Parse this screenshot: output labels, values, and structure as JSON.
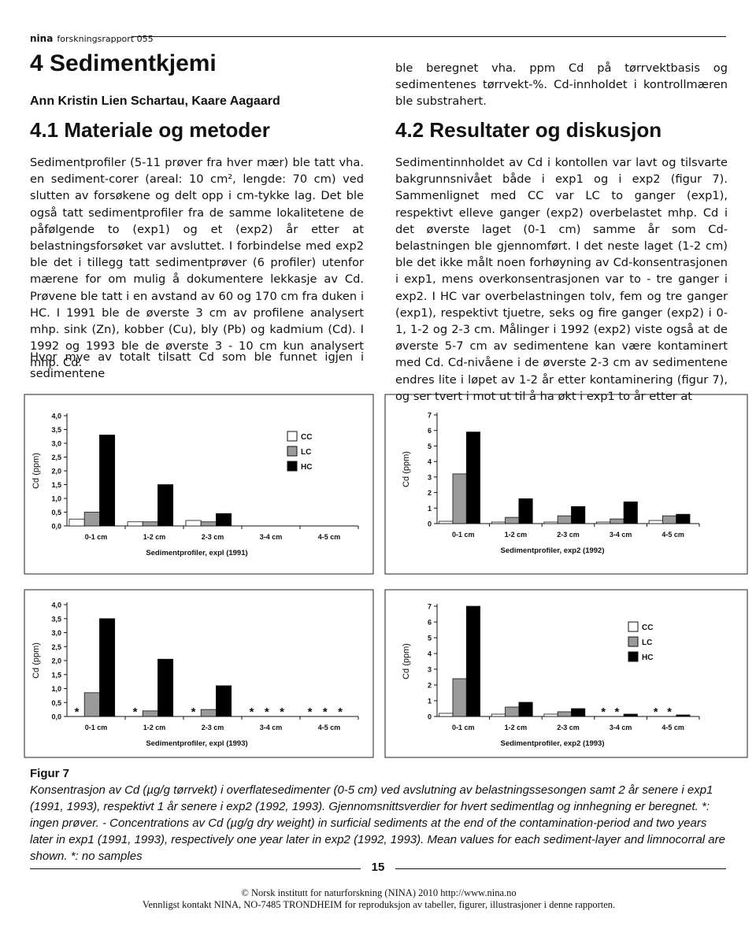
{
  "header": {
    "brand": "nina",
    "series": "forskningsrapport 055"
  },
  "left": {
    "title": "4 Sedimentkjemi",
    "authors": "Ann Kristin Lien Schartau, Kaare Aagaard",
    "heading": "4.1 Materiale og metoder",
    "paragraphs": [
      "Sedimentprofiler (5-11 prøver fra hver mær) ble tatt vha. en sediment-corer (areal: 10 cm², lengde: 70 cm) ved slutten av forsøkene og delt opp i cm-tykke lag. Det ble også tatt sedimentprofiler fra de samme lokalitetene de påfølgende to (exp1) og et (exp2) år etter at belastningsforsøket var avsluttet. I forbindelse med exp2 ble det i tillegg tatt sedimentprøver (6 profiler) utenfor mærene for om mulig å dokumentere lekkasje av Cd. Prøvene ble tatt i en avstand av 60 og 170 cm fra duken i HC. I 1991 ble de øverste 3 cm av profilene analysert mhp. sink (Zn), kobber (Cu), bly (Pb) og kadmium (Cd). I 1992 og 1993 ble de øverste 3 - 10 cm kun analysert mhp. Cd.",
      "Hvor mye av totalt tilsatt Cd som ble funnet igjen i sedimentene"
    ]
  },
  "right": {
    "continuation": "ble beregnet vha. ppm Cd på tørrvektbasis og sedimentenes tørrvekt-%. Cd-innholdet i kontrollmæren ble substrahert.",
    "heading": "4.2 Resultater og diskusjon",
    "paragraph": "Sedimentinnholdet av Cd i kontollen var lavt og tilsvarte bakgrunnsnivået både i exp1 og i exp2 (figur 7). Sammenlignet med CC var LC to ganger (exp1), respektivt elleve ganger (exp2) overbelastet mhp. Cd i det øverste laget (0-1 cm) samme år som Cd-belastningen ble gjennomført. I det neste laget (1-2 cm) ble det ikke målt noen forhøyning av Cd-konsentrasjonen i exp1, mens overkonsentrasjonen var to - tre ganger i exp2. I HC var overbelastningen tolv, fem og tre ganger (exp1), respektivt tjuetre, seks og fire ganger (exp2) i 0-1, 1-2 og 2-3 cm. Målinger i 1992 (exp2) viste også at de øverste 5-7 cm av sedimentene kan være kontaminert med Cd. Cd-nivåene i de øverste 2-3 cm av sedimentene endres lite i løpet av 1-2 år etter kontaminering (figur 7), og ser tvert i mot ut til å ha økt i exp1 to år etter at"
  },
  "chart_data": [
    {
      "type": "bar",
      "x_label": "Sedimentprofiler, expl (1991)",
      "y_label": "Cd (ppm)",
      "categories": [
        "0-1 cm",
        "1-2 cm",
        "2-3 cm",
        "3-4 cm",
        "4-5 cm"
      ],
      "series": [
        {
          "name": "CC",
          "color": "#ffffff",
          "values": [
            0.25,
            0.15,
            0.2,
            null,
            null
          ]
        },
        {
          "name": "LC",
          "color": "#9a9a9a",
          "values": [
            0.5,
            0.15,
            0.15,
            null,
            null
          ]
        },
        {
          "name": "HC",
          "color": "#000000",
          "values": [
            3.3,
            1.5,
            0.45,
            null,
            null
          ]
        }
      ],
      "ylim": [
        0,
        4
      ],
      "yticks": [
        {
          "value": 0,
          "label": "0,0"
        },
        {
          "value": 0.5,
          "label": "0,5"
        },
        {
          "value": 1,
          "label": "1,0"
        },
        {
          "value": 1.5,
          "label": "1,5"
        },
        {
          "value": 2,
          "label": "2,0"
        },
        {
          "value": 2.5,
          "label": "2,5"
        },
        {
          "value": 3,
          "label": "3,0"
        },
        {
          "value": 3.5,
          "label": "3,5"
        },
        {
          "value": 4,
          "label": "4,0"
        }
      ],
      "legend": true
    },
    {
      "type": "bar",
      "x_label": "Sedimentprofiler, exp2 (1992)",
      "y_label": "Cd (ppm)",
      "categories": [
        "0-1 cm",
        "1-2 cm",
        "2-3 cm",
        "3-4 cm",
        "4-5 cm"
      ],
      "series": [
        {
          "color": "#ffffff",
          "values": [
            0.15,
            0.1,
            0.1,
            0.1,
            0.2
          ]
        },
        {
          "color": "#9a9a9a",
          "values": [
            3.2,
            0.4,
            0.5,
            0.3,
            0.5
          ]
        },
        {
          "color": "#000000",
          "values": [
            5.9,
            1.6,
            1.1,
            1.4,
            0.6
          ]
        }
      ],
      "ylim": [
        0,
        7
      ],
      "yticks": [
        0,
        1,
        2,
        3,
        4,
        5,
        6,
        7
      ],
      "legend": false
    },
    {
      "type": "bar",
      "x_label": "Sedimentprofiler, expl (1993)",
      "y_label": "Cd (ppm)",
      "categories": [
        "0-1 cm",
        "1-2 cm",
        "2-3 cm",
        "3-4 cm",
        "4-5 cm"
      ],
      "series": [
        {
          "color": "#ffffff",
          "values": [
            null,
            null,
            null,
            null,
            null
          ]
        },
        {
          "color": "#9a9a9a",
          "values": [
            0.85,
            0.2,
            0.25,
            null,
            null
          ]
        },
        {
          "color": "#000000",
          "values": [
            3.5,
            2.05,
            1.1,
            null,
            null
          ]
        }
      ],
      "ylim": [
        0,
        4
      ],
      "yticks": [
        {
          "value": 0,
          "label": "0,0"
        },
        {
          "value": 0.5,
          "label": "0,5"
        },
        {
          "value": 1,
          "label": "1,0"
        },
        {
          "value": 1.5,
          "label": "1,5"
        },
        {
          "value": 2,
          "label": "2,0"
        },
        {
          "value": 2.5,
          "label": "2,5"
        },
        {
          "value": 3,
          "label": "3,0"
        },
        {
          "value": 3.5,
          "label": "3,5"
        },
        {
          "value": 4,
          "label": "4,0"
        }
      ],
      "legend": false,
      "missing_marker": "*"
    },
    {
      "type": "bar",
      "x_label": "Sedimentprofiler, exp2 (1993)",
      "y_label": "Cd (ppm)",
      "categories": [
        "0-1 cm",
        "1-2 cm",
        "2-3 cm",
        "3-4 cm",
        "4-5 cm"
      ],
      "series": [
        {
          "name": "CC",
          "color": "#ffffff",
          "values": [
            0.2,
            0.15,
            0.15,
            null,
            null
          ]
        },
        {
          "name": "LC",
          "color": "#9a9a9a",
          "values": [
            2.4,
            0.6,
            0.3,
            null,
            null
          ]
        },
        {
          "name": "HC",
          "color": "#000000",
          "values": [
            7.0,
            0.9,
            0.5,
            0.15,
            0.1
          ]
        }
      ],
      "ylim": [
        0,
        7
      ],
      "yticks": [
        0,
        1,
        2,
        3,
        4,
        5,
        6,
        7
      ],
      "legend": true,
      "missing_marker": "*"
    }
  ],
  "figure": {
    "label": "Figur 7",
    "caption": "Konsentrasjon av Cd (µg/g tørrvekt) i overflatesedimenter (0-5 cm) ved avslutning av belastningssesongen samt 2 år senere i exp1 (1991, 1993), respektivt 1 år senere i exp2 (1992, 1993). Gjennomsnittsverdier for hvert sedimentlag og innhegning er beregnet. *: ingen prøver. - Concentrations av Cd (µg/g dry weight) in surficial sediments at the end of the contamination-period and two years later in exp1 (1991, 1993), respectively one year later in exp2 (1992, 1993). Mean values for each sediment-layer and limnocorral are shown. *: no samples"
  },
  "footer": {
    "page": "15",
    "copyright": "© Norsk institutt for naturforskning (NINA) 2010 http://www.nina.no",
    "notice": "Vennligst kontakt NINA, NO-7485 TRONDHEIM for reproduksjon av tabeller, figurer, illustrasjoner i denne rapporten."
  }
}
